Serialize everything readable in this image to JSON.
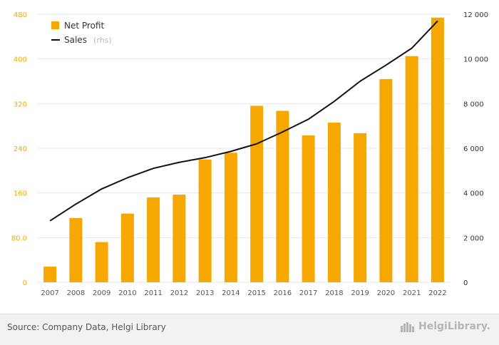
{
  "chart_data": {
    "type": "bar",
    "categories": [
      "2007",
      "2008",
      "2009",
      "2010",
      "2011",
      "2012",
      "2013",
      "2014",
      "2015",
      "2016",
      "2017",
      "2018",
      "2019",
      "2020",
      "2021",
      "2022"
    ],
    "series": [
      {
        "name": "Net Profit",
        "kind": "bar",
        "axis": "left",
        "color": "#f7a800",
        "values": [
          28,
          115,
          72,
          123,
          152,
          157,
          220,
          232,
          316,
          307,
          263,
          286,
          267,
          364,
          405,
          474
        ]
      },
      {
        "name": "Sales",
        "note": "(rhs)",
        "kind": "line",
        "axis": "right",
        "color": "#111111",
        "values": [
          2750,
          3500,
          4180,
          4680,
          5100,
          5370,
          5580,
          5860,
          6200,
          6730,
          7300,
          8100,
          9000,
          9720,
          10480,
          11700
        ]
      }
    ],
    "left_axis": {
      "ticks": [
        "0",
        "80.0",
        "160",
        "240",
        "320",
        "400",
        "480"
      ],
      "min": 0,
      "max": 480
    },
    "right_axis": {
      "ticks": [
        "0",
        "2 000",
        "4 000",
        "6 000",
        "8 000",
        "10 000",
        "12 000"
      ],
      "min": 0,
      "max": 12000
    },
    "legend_position": "top-left",
    "grid": true
  },
  "footer": {
    "source": "Source: Company Data, Helgi Library",
    "brand": "HelgiLibrary."
  }
}
